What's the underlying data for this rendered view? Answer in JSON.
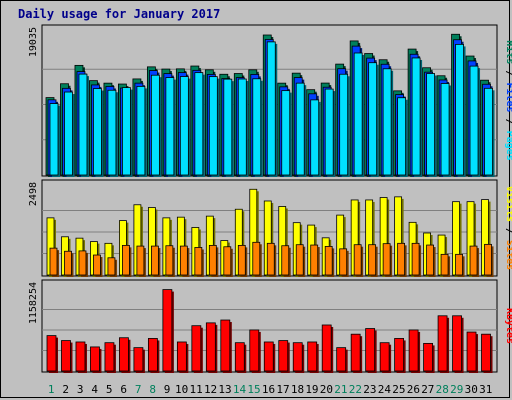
{
  "window": {
    "title": "Daily usage for January 2017"
  },
  "colors": {
    "background": "#c0c0c0",
    "panel": "#c0c0c0",
    "title": "#00008b",
    "hits": "#00805c",
    "files": "#0040ff",
    "pages": "#00e0ff",
    "visits": "#ffff00",
    "sites": "#ff8000",
    "kbytes": "#ff0000",
    "weekday_label": "#000000",
    "weekend_label": "#00805c",
    "separator": "#000000"
  },
  "chart_data": [
    {
      "type": "bar",
      "title": "Daily usage for January 2017",
      "categories": [
        "1",
        "2",
        "3",
        "4",
        "5",
        "6",
        "7",
        "8",
        "9",
        "10",
        "11",
        "12",
        "13",
        "14",
        "15",
        "16",
        "17",
        "18",
        "19",
        "20",
        "21",
        "22",
        "23",
        "24",
        "25",
        "26",
        "27",
        "28",
        "29",
        "30",
        "31"
      ],
      "weekend_days": [
        "1",
        "7",
        "8",
        "14",
        "15",
        "21",
        "22",
        "28",
        "29"
      ],
      "ymax_label": "19035",
      "ymax": 19035,
      "axis_labels": [
        "Hits",
        "Files",
        "Pages"
      ],
      "series": [
        {
          "name": "Hits",
          "values": [
            10450,
            12320,
            14800,
            12740,
            12400,
            12280,
            12970,
            14600,
            14300,
            14330,
            14710,
            14200,
            13600,
            13700,
            14200,
            18900,
            12400,
            13750,
            11520,
            12410,
            14970,
            18100,
            16400,
            15560,
            11360,
            17000,
            14480,
            13400,
            19000,
            16060,
            12800
          ]
        },
        {
          "name": "Files",
          "values": [
            10150,
            11700,
            13960,
            12160,
            11950,
            11740,
            12400,
            14100,
            13690,
            13830,
            14130,
            13580,
            13020,
            13150,
            13580,
            18300,
            11900,
            13150,
            10960,
            11850,
            14350,
            17400,
            15780,
            14950,
            10860,
            16300,
            13880,
            12830,
            18260,
            15400,
            12250
          ]
        },
        {
          "name": "Pages",
          "values": [
            9640,
            11200,
            13620,
            11670,
            11440,
            11800,
            11960,
            13470,
            13150,
            13290,
            13820,
            13280,
            12940,
            12960,
            12990,
            17970,
            11390,
            12400,
            10140,
            11600,
            13600,
            16470,
            15160,
            14340,
            10430,
            15800,
            13700,
            12350,
            17630,
            14700,
            11700
          ]
        }
      ]
    },
    {
      "type": "bar",
      "title": "",
      "categories": [
        "1",
        "2",
        "3",
        "4",
        "5",
        "6",
        "7",
        "8",
        "9",
        "10",
        "11",
        "12",
        "13",
        "14",
        "15",
        "16",
        "17",
        "18",
        "19",
        "20",
        "21",
        "22",
        "23",
        "24",
        "25",
        "26",
        "27",
        "28",
        "29",
        "30",
        "31"
      ],
      "ymax_label": "2498",
      "ymax": 2498,
      "axis_labels": [
        "Visits",
        "Sites"
      ],
      "series": [
        {
          "name": "Visits",
          "values": [
            1660,
            1110,
            1070,
            970,
            920,
            1580,
            2040,
            1960,
            1660,
            1680,
            1380,
            1710,
            1000,
            1910,
            2490,
            2150,
            1990,
            1520,
            1450,
            1080,
            1740,
            2180,
            2180,
            2250,
            2270,
            1530,
            1220,
            1160,
            2130,
            2130,
            2190
          ]
        },
        {
          "name": "Sites",
          "values": [
            780,
            690,
            700,
            580,
            500,
            860,
            840,
            840,
            850,
            840,
            800,
            860,
            820,
            860,
            950,
            920,
            850,
            880,
            870,
            830,
            760,
            880,
            880,
            910,
            920,
            920,
            870,
            600,
            600,
            840,
            890
          ]
        }
      ]
    },
    {
      "type": "bar",
      "title": "",
      "categories": [
        "1",
        "2",
        "3",
        "4",
        "5",
        "6",
        "7",
        "8",
        "9",
        "10",
        "11",
        "12",
        "13",
        "14",
        "15",
        "16",
        "17",
        "18",
        "19",
        "20",
        "21",
        "22",
        "23",
        "24",
        "25",
        "26",
        "27",
        "28",
        "29",
        "30",
        "31"
      ],
      "ymax_label": "1158254",
      "ymax": 1158254,
      "axis_labels": [
        "KBytes"
      ],
      "series": [
        {
          "name": "KBytes",
          "values": [
            500000,
            430000,
            410000,
            340000,
            400000,
            470000,
            330000,
            460000,
            1150000,
            410000,
            640000,
            680000,
            720000,
            400000,
            580000,
            410000,
            430000,
            400000,
            410000,
            650000,
            330000,
            520000,
            600000,
            400000,
            460000,
            580000,
            390000,
            780000,
            780000,
            550000,
            520000
          ]
        }
      ]
    }
  ]
}
